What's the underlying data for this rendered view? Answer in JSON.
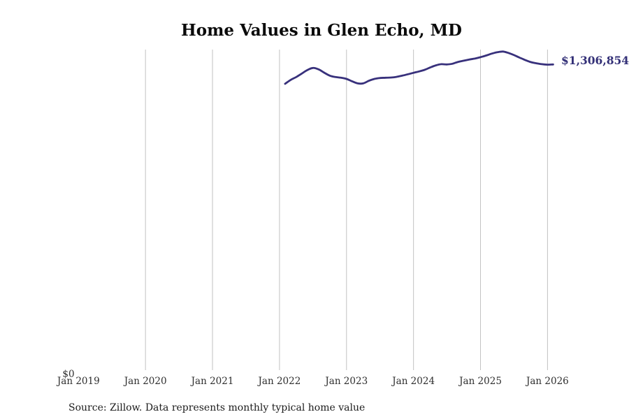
{
  "title": "Home Values in Glen Echo, MD",
  "source_note": "Source: Zillow. Data represents monthly typical home value",
  "chart_data": {
    "type": "line",
    "title": "Home Values in Glen Echo, MD",
    "series_name": "Monthly typical home value",
    "unit": "USD",
    "frequency": "monthly",
    "x_start": "Feb 2022",
    "x_end": "Feb 2026",
    "x_ticks": [
      {
        "label": "Jan 2019",
        "gridline": false
      },
      {
        "label": "Jan 2020",
        "gridline": true
      },
      {
        "label": "Jan 2021",
        "gridline": true
      },
      {
        "label": "Jan 2022",
        "gridline": true
      },
      {
        "label": "Jan 2023",
        "gridline": true
      },
      {
        "label": "Jan 2024",
        "gridline": true
      },
      {
        "label": "Jan 2025",
        "gridline": true
      },
      {
        "label": "Jan 2026",
        "gridline": true
      }
    ],
    "y_zero_label": "$0",
    "end_label": "$1,306,854",
    "end_value": 1306854,
    "ylim": [
      0,
      1371000
    ],
    "grid": "vertical-only",
    "legend": "none",
    "values": [
      1224000,
      1241000,
      1253000,
      1268000,
      1283000,
      1292000,
      1286000,
      1272000,
      1259000,
      1253000,
      1250000,
      1245000,
      1235000,
      1226000,
      1226000,
      1237000,
      1245000,
      1249000,
      1250000,
      1251000,
      1254000,
      1259000,
      1265000,
      1271000,
      1277000,
      1284000,
      1294000,
      1303000,
      1308000,
      1307000,
      1310000,
      1318000,
      1323000,
      1328000,
      1332000,
      1338000,
      1345000,
      1353000,
      1359000,
      1362000,
      1356000,
      1347000,
      1336000,
      1326000,
      1317000,
      1312000,
      1308000,
      1306000,
      1306854
    ],
    "line_color": "#38317c",
    "label_color": "#333077",
    "grid_color": "#c2c2c2",
    "tick_color": "#2e2e2e"
  }
}
